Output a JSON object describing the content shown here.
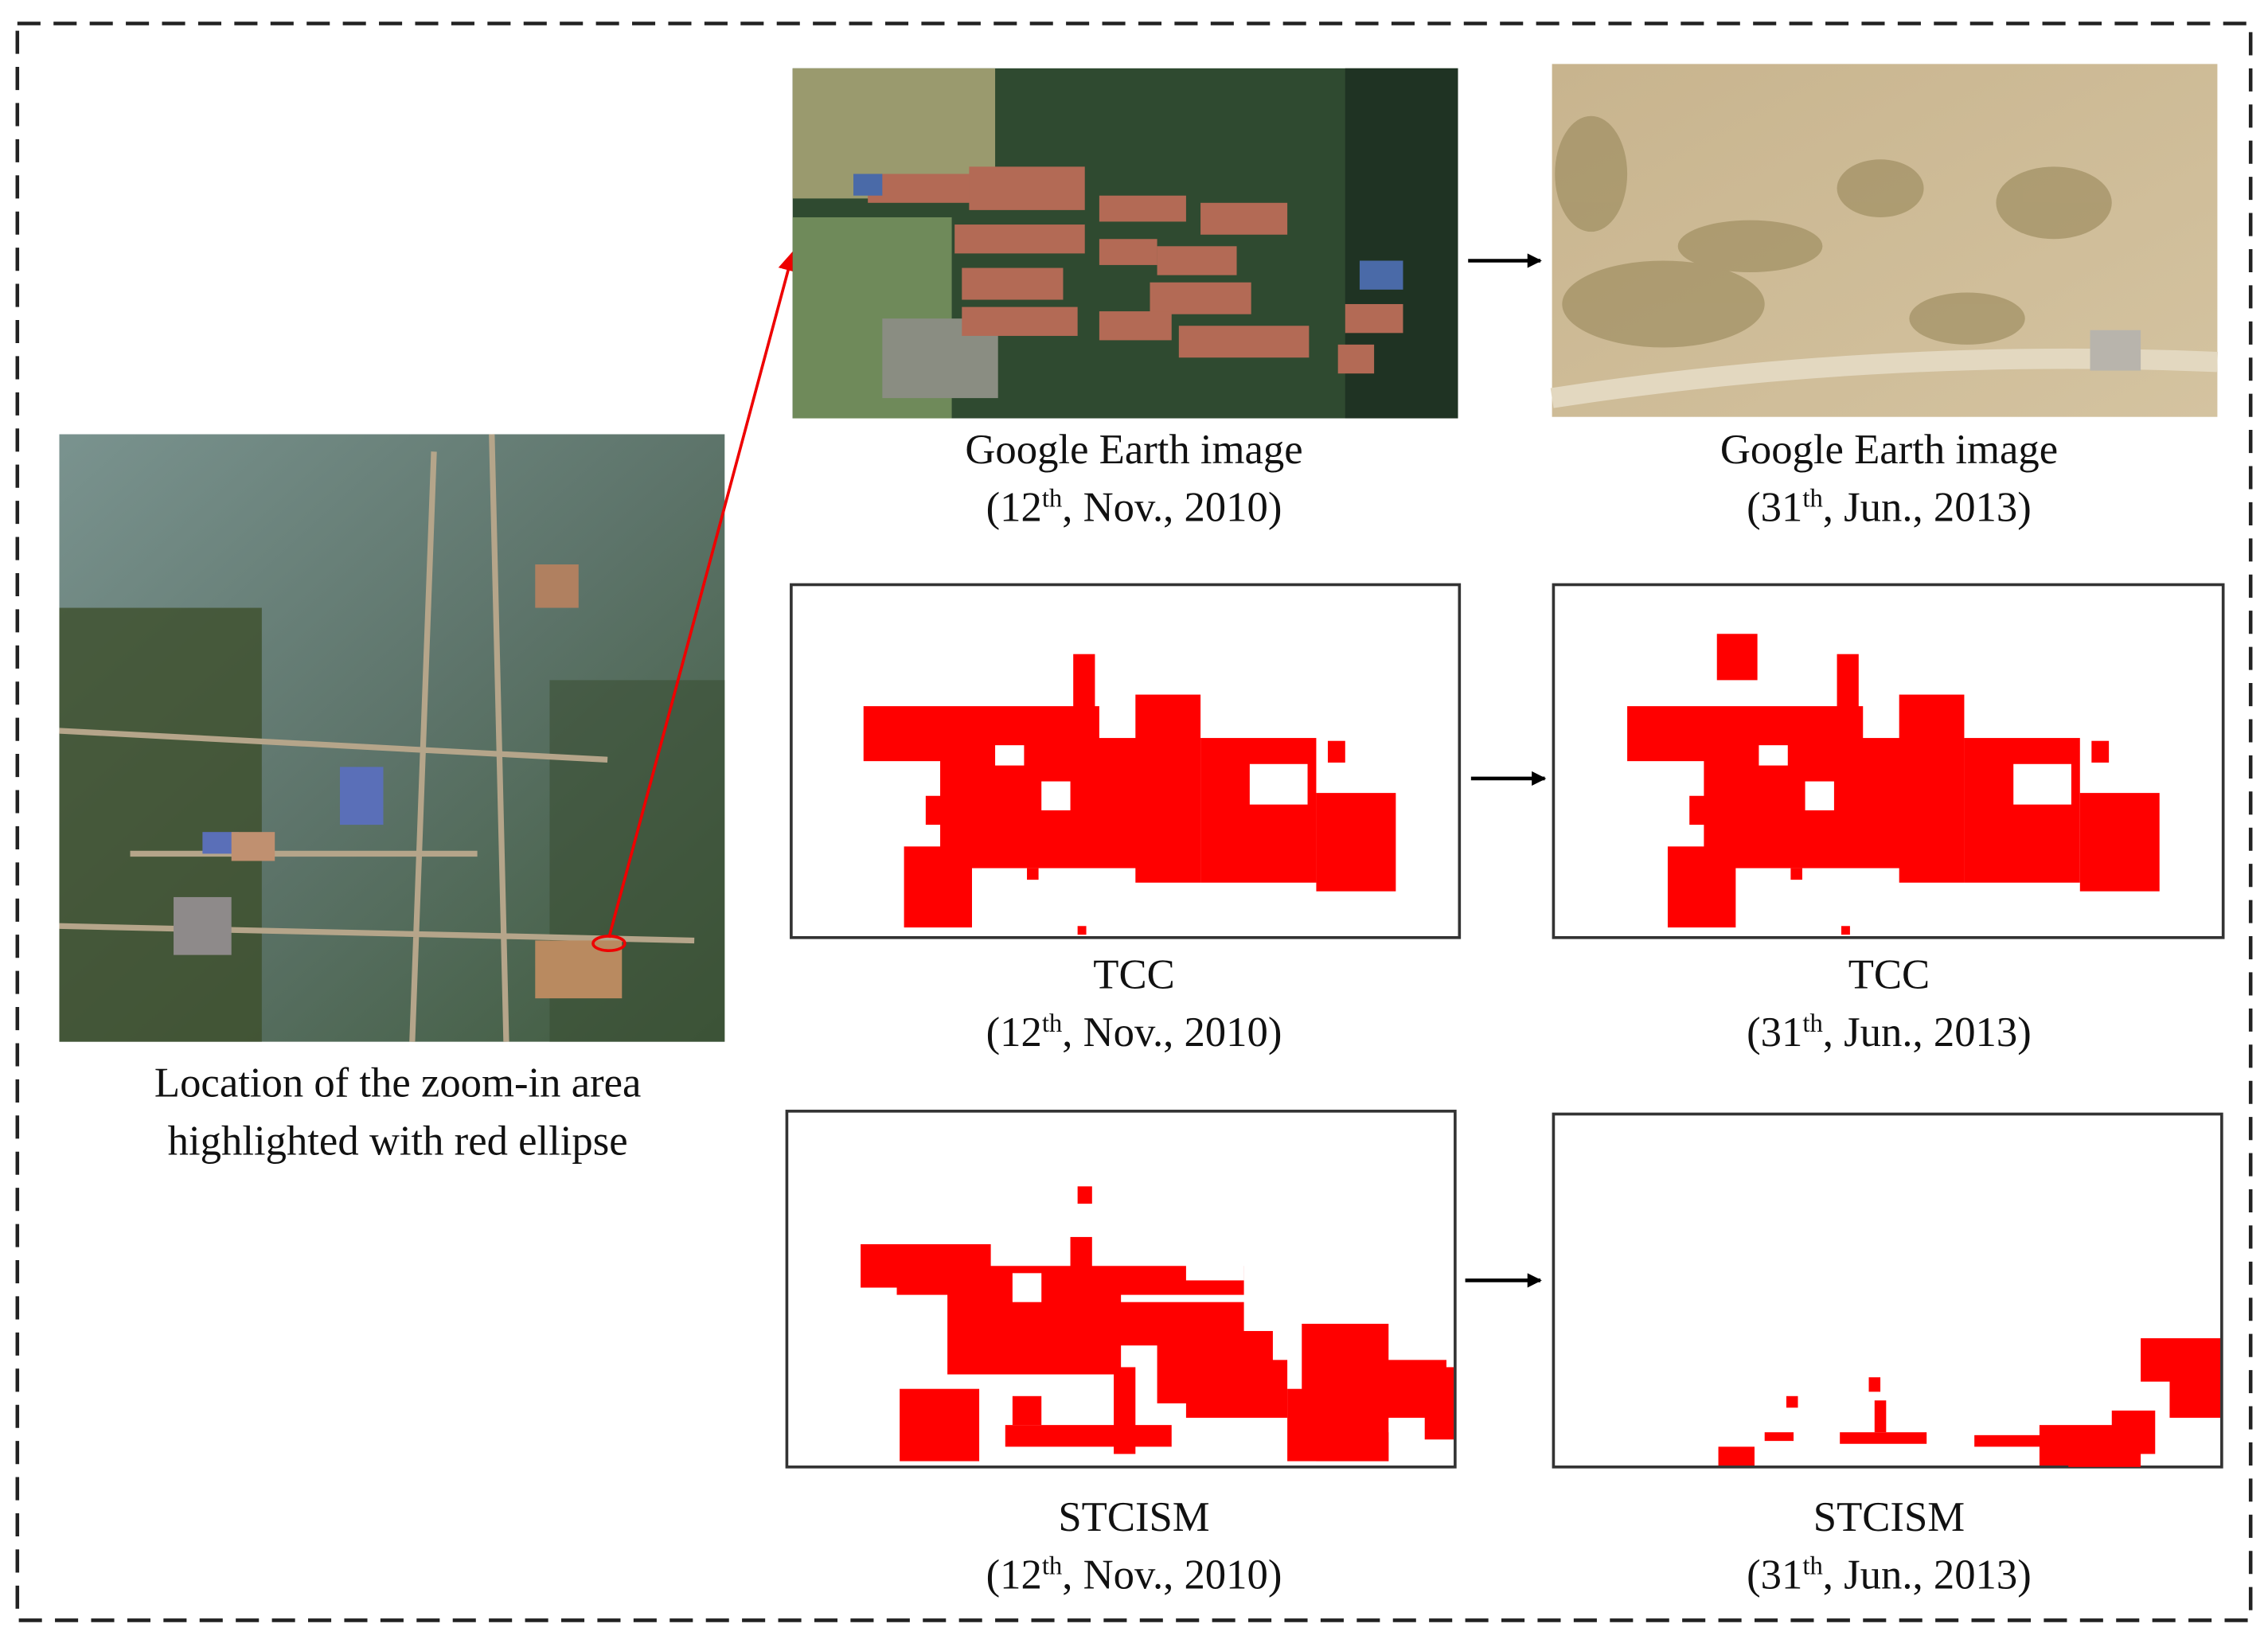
{
  "overview": {
    "caption": [
      "Location of the zoom-in area",
      "highlighted with red ellipse"
    ]
  },
  "panels": [
    {
      "title": "Google Earth image",
      "date": {
        "open": "(12",
        "suffix": "th",
        "rest": ", Nov., 2010)"
      }
    },
    {
      "title": "Google Earth image",
      "date": {
        "open": "(31",
        "suffix": "th",
        "rest": ", Jun., 2013)"
      }
    },
    {
      "title": "TCC",
      "date": {
        "open": "(12",
        "suffix": "th",
        "rest": ", Nov., 2010)"
      }
    },
    {
      "title": "TCC",
      "date": {
        "open": "(31",
        "suffix": "th",
        "rest": ", Jun., 2013)"
      }
    },
    {
      "title": "STCISM",
      "date": {
        "open": "(12",
        "suffix": "th",
        "rest": ", Nov., 2010)"
      }
    },
    {
      "title": "STCISM",
      "date": {
        "open": "(31",
        "suffix": "th",
        "rest": ", Jun., 2013)"
      }
    }
  ]
}
